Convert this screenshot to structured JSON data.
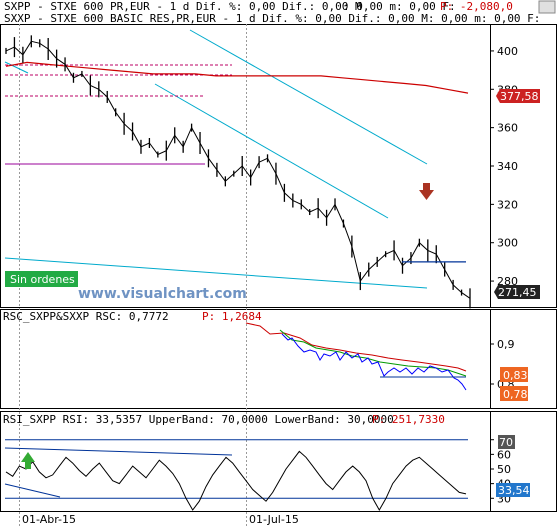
{
  "header": {
    "line1_a": "SXPP - STXE 600 PR,EUR - 1 d Dif. %: 0,00 Dif.: 0,00 M",
    "line1_b": ": 0,00 m: 0,00 F:",
    "line1_red": "P: -2,080,0",
    "line2": "SXXP - STXE 600 BASIC RES,PR,EUR - 1 d Dif. %: 0,00 Dif.: 0,00 M: 0,00 m: 0,00 F:"
  },
  "rsc_header": {
    "label": "RSC_SXPP&SXXP RSC: 0,7772",
    "red": "P: 1,2684"
  },
  "rsi_header": {
    "label": "RSI_SXPP RSI: 33,5357 UpperBand: 70,0000 LowerBand: 30,0000",
    "red": "P: 251,7330"
  },
  "watermark": "www.visualchart.com",
  "sin_ordenes": "Sin ordenes",
  "dates": [
    "01-Abr-15",
    "01-Jul-15"
  ],
  "colors": {
    "price": "#000000",
    "ma": "#cc0000",
    "channel": "#00aacc",
    "rsc_blue": "#0000ff",
    "rsc_red": "#cc0000",
    "rsc_green": "#009900",
    "rsi": "#000000",
    "band": "#003399",
    "arrow_down": "#aa3322",
    "arrow_up": "#33aa33",
    "tag_red": "#cc2222",
    "tag_orange": "#ee6622",
    "tag_dark": "#222222",
    "tag_blue": "#2277cc",
    "tag_gray": "#555555",
    "sin_ordenes_bg": "#22aa44"
  },
  "chart_data": [
    {
      "type": "line",
      "panel": "price",
      "y_ticks": [
        280,
        300,
        320,
        340,
        360,
        380,
        400
      ],
      "ylim": [
        267,
        413
      ],
      "last_price": "271,45",
      "ma_value": "377,58",
      "price": [
        400,
        402,
        398,
        405,
        404,
        401,
        396,
        393,
        386,
        388,
        382,
        380,
        376,
        368,
        362,
        358,
        350,
        352,
        346,
        348,
        356,
        350,
        360,
        352,
        344,
        338,
        332,
        336,
        340,
        334,
        342,
        344,
        336,
        326,
        322,
        320,
        316,
        318,
        313,
        320,
        310,
        298,
        280,
        286,
        290,
        294,
        296,
        288,
        292,
        300,
        296,
        294,
        286,
        278,
        274,
        271
      ],
      "ma": [
        392,
        394,
        393,
        392,
        391,
        390,
        389,
        388,
        388,
        388,
        387,
        387,
        387,
        387,
        387,
        387,
        386,
        385,
        384,
        383,
        382,
        380,
        378
      ],
      "resistance_level": 290
    },
    {
      "type": "line",
      "panel": "rsc",
      "y_ticks": [
        "0,9",
        "0,8"
      ],
      "ylim": [
        0.74,
        0.98
      ],
      "tag_top": "0,83",
      "tag_bottom": "0,78"
    },
    {
      "type": "line",
      "panel": "rsi",
      "y_ticks": [
        70,
        60,
        50,
        40,
        30
      ],
      "ylim": [
        22,
        78
      ],
      "upper_band": 70,
      "lower_band": 30,
      "last_value": "33,54",
      "rsi": [
        48,
        45,
        52,
        50,
        55,
        48,
        44,
        46,
        52,
        58,
        54,
        49,
        45,
        50,
        54,
        48,
        42,
        40,
        46,
        52,
        48,
        44,
        50,
        56,
        52,
        47,
        40,
        30,
        22,
        28,
        38,
        46,
        52,
        58,
        54,
        48,
        42,
        36,
        32,
        28,
        34,
        42,
        50,
        56,
        62,
        58,
        52,
        46,
        40,
        36,
        42,
        48,
        52,
        48,
        42,
        30,
        22,
        30,
        40,
        46,
        52,
        56,
        58,
        54,
        50,
        46,
        42,
        38,
        34,
        33
      ]
    }
  ]
}
